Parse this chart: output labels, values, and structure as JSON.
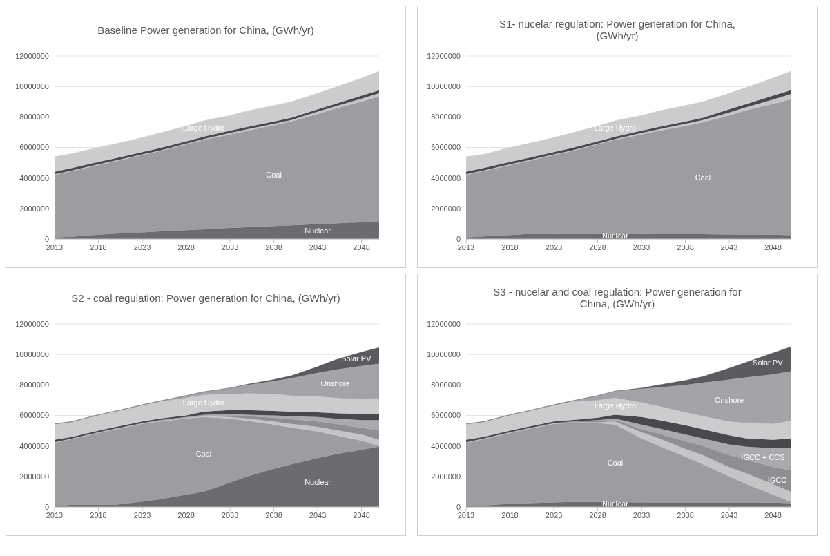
{
  "chart_data": [
    {
      "type": "area",
      "title": "Baseline Power generation for China,  (GWh/yr)",
      "stacked": true,
      "grid": "y",
      "x": [
        2013,
        2015,
        2018,
        2020,
        2023,
        2025,
        2028,
        2030,
        2033,
        2035,
        2038,
        2040,
        2043,
        2045,
        2048,
        2050
      ],
      "xlim": [
        2013,
        2050
      ],
      "xticks": [
        2013,
        2018,
        2023,
        2028,
        2033,
        2038,
        2043,
        2048
      ],
      "ylim": [
        0,
        12000000
      ],
      "yticks": [
        0,
        2000000,
        4000000,
        6000000,
        8000000,
        10000000,
        12000000
      ],
      "series": [
        {
          "name": "Nuclear",
          "color": "#6b6c70",
          "values": [
            100000,
            150000,
            280000,
            350000,
            430000,
            500000,
            580000,
            630000,
            720000,
            770000,
            850000,
            900000,
            970000,
            1020000,
            1100000,
            1150000
          ]
        },
        {
          "name": "Coal",
          "color": "#9c9da1",
          "values": [
            4100000,
            4300000,
            4570000,
            4750000,
            5070000,
            5250000,
            5620000,
            5870000,
            6130000,
            6330000,
            6600000,
            6800000,
            7230000,
            7530000,
            7900000,
            8200000
          ]
        },
        {
          "color": "#c4c5c7",
          "values": [
            50000,
            50000,
            50000,
            50000,
            50000,
            50000,
            50000,
            50000,
            100000,
            100000,
            100000,
            100000,
            150000,
            150000,
            200000,
            200000
          ]
        },
        {
          "color": "#48494c",
          "values": [
            150000,
            150000,
            150000,
            150000,
            150000,
            150000,
            150000,
            150000,
            150000,
            150000,
            150000,
            150000,
            150000,
            150000,
            200000,
            200000
          ]
        },
        {
          "name": "Large Hydro",
          "color": "#cbcccd",
          "values": [
            1000000,
            950000,
            950000,
            950000,
            950000,
            1000000,
            1000000,
            1050000,
            1000000,
            1050000,
            1050000,
            1050000,
            1050000,
            1100000,
            1150000,
            1250000
          ]
        }
      ]
    },
    {
      "type": "area",
      "title": "S1- nucelar regulation: Power generation for China, (GWh/yr)",
      "stacked": true,
      "grid": "y",
      "x": [
        2013,
        2015,
        2018,
        2020,
        2023,
        2025,
        2028,
        2030,
        2033,
        2035,
        2038,
        2040,
        2043,
        2045,
        2048,
        2050
      ],
      "xlim": [
        2013,
        2050
      ],
      "xticks": [
        2013,
        2018,
        2023,
        2028,
        2033,
        2038,
        2043,
        2048
      ],
      "ylim": [
        0,
        12000000
      ],
      "yticks": [
        0,
        2000000,
        4000000,
        6000000,
        8000000,
        10000000,
        12000000
      ],
      "series": [
        {
          "name": "Nuclear",
          "color": "#6b6c70",
          "values": [
            100000,
            170000,
            260000,
            330000,
            330000,
            330000,
            330000,
            330000,
            330000,
            320000,
            320000,
            320000,
            300000,
            300000,
            280000,
            250000
          ]
        },
        {
          "name": "Coal",
          "color": "#9c9da1",
          "values": [
            4100000,
            4280000,
            4590000,
            4770000,
            5170000,
            5420000,
            5870000,
            6170000,
            6520000,
            6780000,
            7080000,
            7330000,
            7800000,
            8150000,
            8570000,
            8900000
          ]
        },
        {
          "color": "#c4c5c7",
          "values": [
            50000,
            50000,
            50000,
            50000,
            50000,
            50000,
            50000,
            50000,
            100000,
            100000,
            150000,
            150000,
            200000,
            200000,
            300000,
            350000
          ]
        },
        {
          "color": "#48494c",
          "values": [
            150000,
            150000,
            150000,
            150000,
            150000,
            150000,
            150000,
            150000,
            150000,
            150000,
            150000,
            150000,
            200000,
            200000,
            250000,
            250000
          ]
        },
        {
          "name": "Large Hydro",
          "color": "#cbcccd",
          "values": [
            1000000,
            900000,
            950000,
            950000,
            950000,
            1000000,
            1000000,
            1050000,
            1000000,
            1050000,
            1050000,
            1050000,
            1050000,
            1100000,
            1150000,
            1250000
          ]
        }
      ]
    },
    {
      "type": "area",
      "title": "S2 - coal regulation: Power generation for China, (GWh/yr)",
      "stacked": true,
      "grid": "y",
      "x": [
        2013,
        2015,
        2018,
        2020,
        2023,
        2025,
        2028,
        2030,
        2033,
        2035,
        2038,
        2040,
        2043,
        2045,
        2048,
        2050
      ],
      "xlim": [
        2013,
        2050
      ],
      "xticks": [
        2013,
        2018,
        2023,
        2028,
        2033,
        2038,
        2043,
        2048
      ],
      "ylim": [
        0,
        12000000
      ],
      "yticks": [
        0,
        2000000,
        4000000,
        6000000,
        8000000,
        10000000,
        12000000
      ],
      "series": [
        {
          "name": "Nuclear",
          "color": "#6b6c70",
          "values": [
            50000,
            150000,
            150000,
            150000,
            350000,
            500000,
            800000,
            1000000,
            1600000,
            2000000,
            2500000,
            2800000,
            3200000,
            3450000,
            3750000,
            3950000
          ]
        },
        {
          "name": "Coal",
          "color": "#9c9da1",
          "values": [
            4150000,
            4300000,
            4700000,
            4950000,
            5100000,
            5100000,
            5000000,
            4900000,
            4200000,
            3650000,
            2900000,
            2400000,
            1750000,
            1250000,
            600000,
            50000
          ]
        },
        {
          "color": "#c4c5c7",
          "values": [
            50000,
            50000,
            50000,
            50000,
            50000,
            50000,
            50000,
            50000,
            100000,
            150000,
            200000,
            250000,
            300000,
            350000,
            400000,
            400000
          ]
        },
        {
          "color": "#8e8f93",
          "values": [
            0,
            0,
            0,
            0,
            0,
            0,
            0,
            30000,
            100000,
            150000,
            250000,
            300000,
            350000,
            400000,
            450000,
            600000
          ]
        },
        {
          "color": "#a9aaad",
          "values": [
            0,
            0,
            0,
            0,
            0,
            50000,
            50000,
            70000,
            100000,
            100000,
            150000,
            200000,
            300000,
            350000,
            500000,
            700000
          ]
        },
        {
          "color": "#48494c",
          "values": [
            150000,
            100000,
            100000,
            100000,
            100000,
            100000,
            100000,
            200000,
            250000,
            300000,
            300000,
            300000,
            300000,
            350000,
            400000,
            400000
          ]
        },
        {
          "name": "Large Hydro",
          "color": "#cbcccd",
          "values": [
            1000000,
            950000,
            1000000,
            1000000,
            1050000,
            1100000,
            1150000,
            1100000,
            1050000,
            1100000,
            1100000,
            1050000,
            1050000,
            1000000,
            950000,
            1000000
          ]
        },
        {
          "name": "Onshore",
          "color": "#a3a4a7",
          "values": [
            50000,
            50000,
            50000,
            50000,
            50000,
            50000,
            150000,
            200000,
            400000,
            550000,
            850000,
            1150000,
            1550000,
            1850000,
            2200000,
            2300000
          ]
        },
        {
          "name": "Solar PV",
          "color": "#5a5b5e",
          "values": [
            0,
            0,
            0,
            0,
            0,
            0,
            0,
            0,
            0,
            50000,
            100000,
            150000,
            400000,
            650000,
            900000,
            1050000
          ]
        }
      ]
    },
    {
      "type": "area",
      "title": "S3 - nucelar and coal regulation: Power generation for China,  (GWh/yr)",
      "stacked": true,
      "grid": "y",
      "x": [
        2013,
        2015,
        2018,
        2020,
        2023,
        2025,
        2028,
        2030,
        2033,
        2035,
        2038,
        2040,
        2043,
        2045,
        2048,
        2050
      ],
      "xlim": [
        2013,
        2050
      ],
      "xticks": [
        2013,
        2018,
        2023,
        2028,
        2033,
        2038,
        2043,
        2048
      ],
      "ylim": [
        0,
        12000000
      ],
      "yticks": [
        0,
        2000000,
        4000000,
        6000000,
        8000000,
        10000000,
        12000000
      ],
      "series": [
        {
          "name": "Nuclear",
          "color": "#6b6c70",
          "values": [
            50000,
            100000,
            200000,
            250000,
            300000,
            330000,
            330000,
            330000,
            300000,
            300000,
            300000,
            300000,
            300000,
            300000,
            280000,
            250000
          ]
        },
        {
          "name": "Coal",
          "color": "#9c9da1",
          "values": [
            4150000,
            4350000,
            4650000,
            4850000,
            5150000,
            5170000,
            5170000,
            5070000,
            4200000,
            3700000,
            3000000,
            2500000,
            1700000,
            1200000,
            520000,
            100000
          ]
        },
        {
          "color": "#c4c5c7",
          "values": [
            50000,
            50000,
            50000,
            50000,
            50000,
            50000,
            50000,
            200000,
            400000,
            500000,
            500000,
            600000,
            600000,
            700000,
            700000,
            650000
          ]
        },
        {
          "name": "IGCC",
          "color": "#8e8f93",
          "values": [
            0,
            0,
            0,
            0,
            0,
            50000,
            100000,
            100000,
            200000,
            300000,
            500000,
            600000,
            800000,
            900000,
            1100000,
            1400000
          ]
        },
        {
          "name": "IGCC + CCS",
          "color": "#a9aaad",
          "values": [
            0,
            0,
            0,
            0,
            0,
            0,
            50000,
            100000,
            300000,
            350000,
            450000,
            500000,
            700000,
            850000,
            1250000,
            1500000
          ]
        },
        {
          "color": "#48494c",
          "values": [
            150000,
            100000,
            100000,
            100000,
            100000,
            100000,
            150000,
            250000,
            500000,
            550000,
            600000,
            600000,
            600000,
            550000,
            550000,
            600000
          ]
        },
        {
          "name": "Large Hydro",
          "color": "#cbcccd",
          "values": [
            1000000,
            950000,
            1000000,
            1000000,
            1050000,
            1200000,
            1150000,
            1100000,
            950000,
            900000,
            850000,
            850000,
            900000,
            1000000,
            1050000,
            1150000
          ]
        },
        {
          "name": "Onshore",
          "color": "#a3a4a7",
          "values": [
            50000,
            50000,
            50000,
            50000,
            50000,
            50000,
            300000,
            450000,
            900000,
            1250000,
            1800000,
            2200000,
            2750000,
            3000000,
            3250000,
            3250000
          ]
        },
        {
          "name": "Solar PV",
          "color": "#5a5b5e",
          "values": [
            0,
            0,
            0,
            0,
            0,
            0,
            0,
            0,
            50000,
            150000,
            300000,
            400000,
            750000,
            1000000,
            1400000,
            1600000
          ]
        }
      ]
    }
  ]
}
